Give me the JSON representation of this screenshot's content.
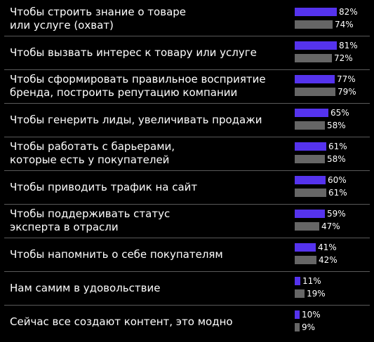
{
  "chart_data": {
    "type": "bar",
    "orientation": "horizontal",
    "categories": [
      "Чтобы строить знание о товаре\nили услуге (охват)",
      "Чтобы вызвать интерес к товару или услуге",
      "Чтобы сформировать правильное восприятие\nбренда, построить репутацию компании",
      "Чтобы генерить лиды, увеличивать продажи",
      "Чтобы работать с барьерами,\nкоторые есть у покупателей",
      "Чтобы приводить трафик на сайт",
      "Чтобы поддерживать статус\nэксперта в отрасли",
      "Чтобы напомнить о себе покупателям",
      "Нам самим в удовольствие",
      "Сейчас все создают контент, это модно"
    ],
    "series": [
      {
        "values": [
          82,
          81,
          77,
          65,
          61,
          60,
          59,
          41,
          11,
          10
        ],
        "labels": [
          "82%",
          "81%",
          "77%",
          "65%",
          "61%",
          "60%",
          "59%",
          "41%",
          "11%",
          "10%"
        ],
        "color": "#5533ee"
      },
      {
        "values": [
          74,
          72,
          79,
          58,
          58,
          61,
          47,
          42,
          19,
          9
        ],
        "labels": [
          "74%",
          "72%",
          "79%",
          "58%",
          "58%",
          "61%",
          "47%",
          "42%",
          "19%",
          "9%"
        ],
        "color": "#666666"
      }
    ],
    "xlim": [
      0,
      100
    ],
    "grid": false,
    "legend": "none"
  },
  "colors": {
    "background": "#000000",
    "divider": "#5a5a5a",
    "text": "#ffffff"
  }
}
